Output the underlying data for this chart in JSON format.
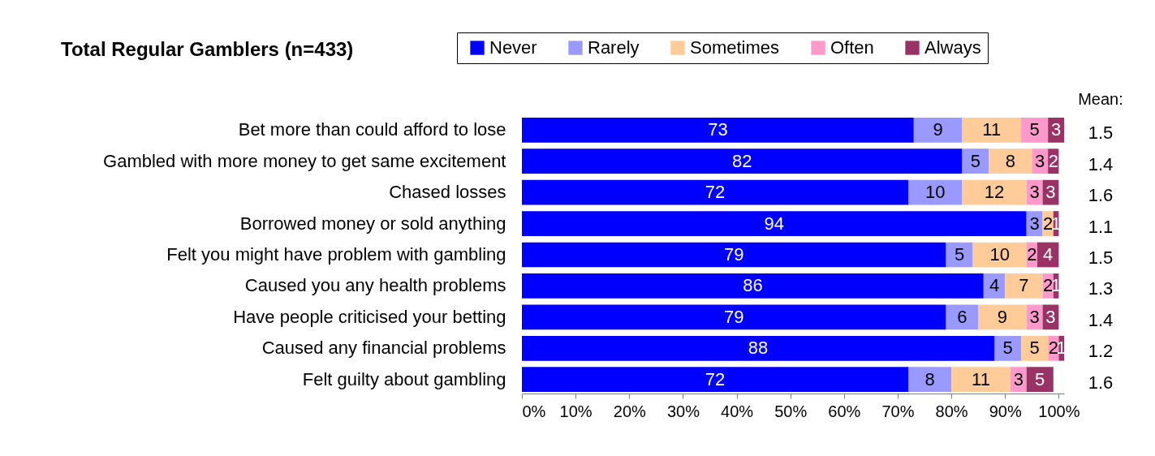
{
  "chart_data": {
    "type": "bar",
    "orientation": "horizontal",
    "stacked": true,
    "title": "Total Regular Gamblers (n=433)",
    "categories": [
      "Bet more than could afford to lose",
      "Gambled with more money to get same excitement",
      "Chased losses",
      "Borrowed money or sold anything",
      "Felt you might have problem with gambling",
      "Caused you any health problems",
      "Have people criticised your betting",
      "Caused any financial problems",
      "Felt guilty about gambling"
    ],
    "series": [
      {
        "name": "Never",
        "color": "#0000ff",
        "values": [
          73,
          82,
          72,
          94,
          79,
          86,
          79,
          88,
          72
        ]
      },
      {
        "name": "Rarely",
        "color": "#9999ff",
        "values": [
          9,
          5,
          10,
          3,
          5,
          4,
          6,
          5,
          8
        ]
      },
      {
        "name": "Sometimes",
        "color": "#ffcc99",
        "values": [
          11,
          8,
          12,
          2,
          10,
          7,
          9,
          5,
          11
        ]
      },
      {
        "name": "Often",
        "color": "#ff99cc",
        "values": [
          5,
          3,
          3,
          null,
          2,
          2,
          3,
          2,
          3
        ]
      },
      {
        "name": "Always",
        "color": "#993366",
        "values": [
          3,
          2,
          3,
          1,
          4,
          1,
          3,
          1,
          5
        ]
      }
    ],
    "xlim": [
      0,
      101
    ],
    "xticks": [
      {
        "value": 0,
        "label": "0%"
      },
      {
        "value": 10,
        "label": "10%"
      },
      {
        "value": 20,
        "label": "20%"
      },
      {
        "value": 30,
        "label": "30%"
      },
      {
        "value": 40,
        "label": "40%"
      },
      {
        "value": 50,
        "label": "50%"
      },
      {
        "value": 60,
        "label": "60%"
      },
      {
        "value": 70,
        "label": "70%"
      },
      {
        "value": 80,
        "label": "80%"
      },
      {
        "value": 90,
        "label": "90%"
      },
      {
        "value": 100,
        "label": "100%"
      }
    ],
    "data_labels": true,
    "legend": "top",
    "grid": false,
    "annotations": [
      "Mean:",
      "1.5",
      "1.4",
      "1.6",
      "1.1",
      "1.5",
      "1.3",
      "1.4",
      "1.2",
      "1.6"
    ]
  }
}
